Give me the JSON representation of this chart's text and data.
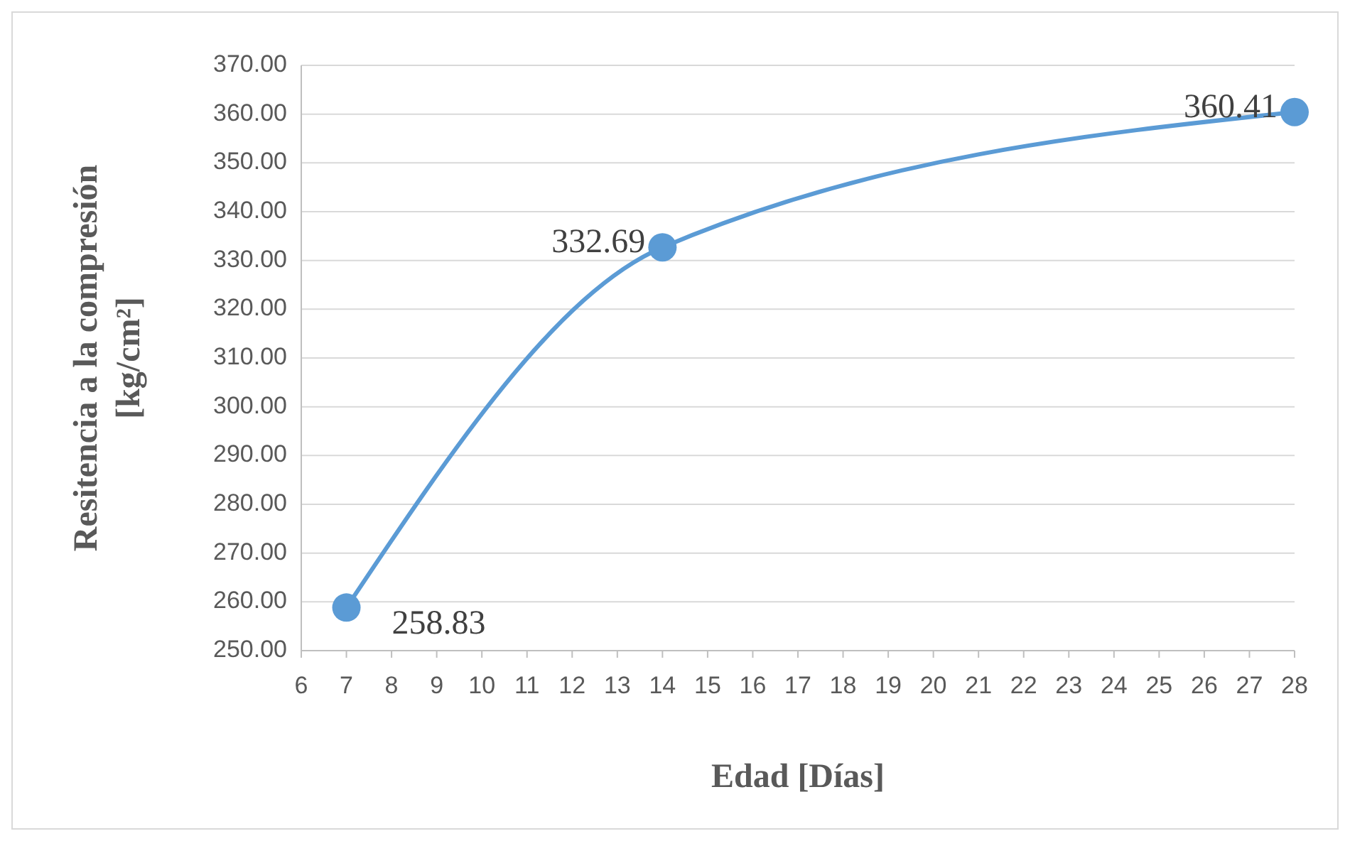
{
  "chart_data": {
    "type": "line",
    "xlabel": "Edad [Días]",
    "ylabel": "Resitencia a la compresión [kg/cm²]",
    "x": [
      7,
      14,
      28
    ],
    "series": [
      {
        "color": "#5b9bd5",
        "values": [
          258.83,
          332.69,
          360.41
        ]
      }
    ],
    "xlim": [
      6,
      28
    ],
    "xticks": [
      6,
      7,
      8,
      9,
      10,
      11,
      12,
      13,
      14,
      15,
      16,
      17,
      18,
      19,
      20,
      21,
      22,
      23,
      24,
      25,
      26,
      27,
      28
    ],
    "ylim": [
      250,
      370
    ],
    "yticks": [
      {
        "value": 250,
        "label": "250.00"
      },
      {
        "value": 260,
        "label": "260.00"
      },
      {
        "value": 270,
        "label": "270.00"
      },
      {
        "value": 280,
        "label": "280.00"
      },
      {
        "value": 290,
        "label": "290.00"
      },
      {
        "value": 300,
        "label": "300.00"
      },
      {
        "value": 310,
        "label": "310.00"
      },
      {
        "value": 320,
        "label": "320.00"
      },
      {
        "value": 330,
        "label": "330.00"
      },
      {
        "value": 340,
        "label": "340.00"
      },
      {
        "value": 350,
        "label": "350.00"
      },
      {
        "value": 360,
        "label": "360.00"
      },
      {
        "value": 370,
        "label": "370.00"
      }
    ],
    "grid": "y",
    "marker": "circle",
    "line_style": "solid",
    "data_labels": true
  }
}
